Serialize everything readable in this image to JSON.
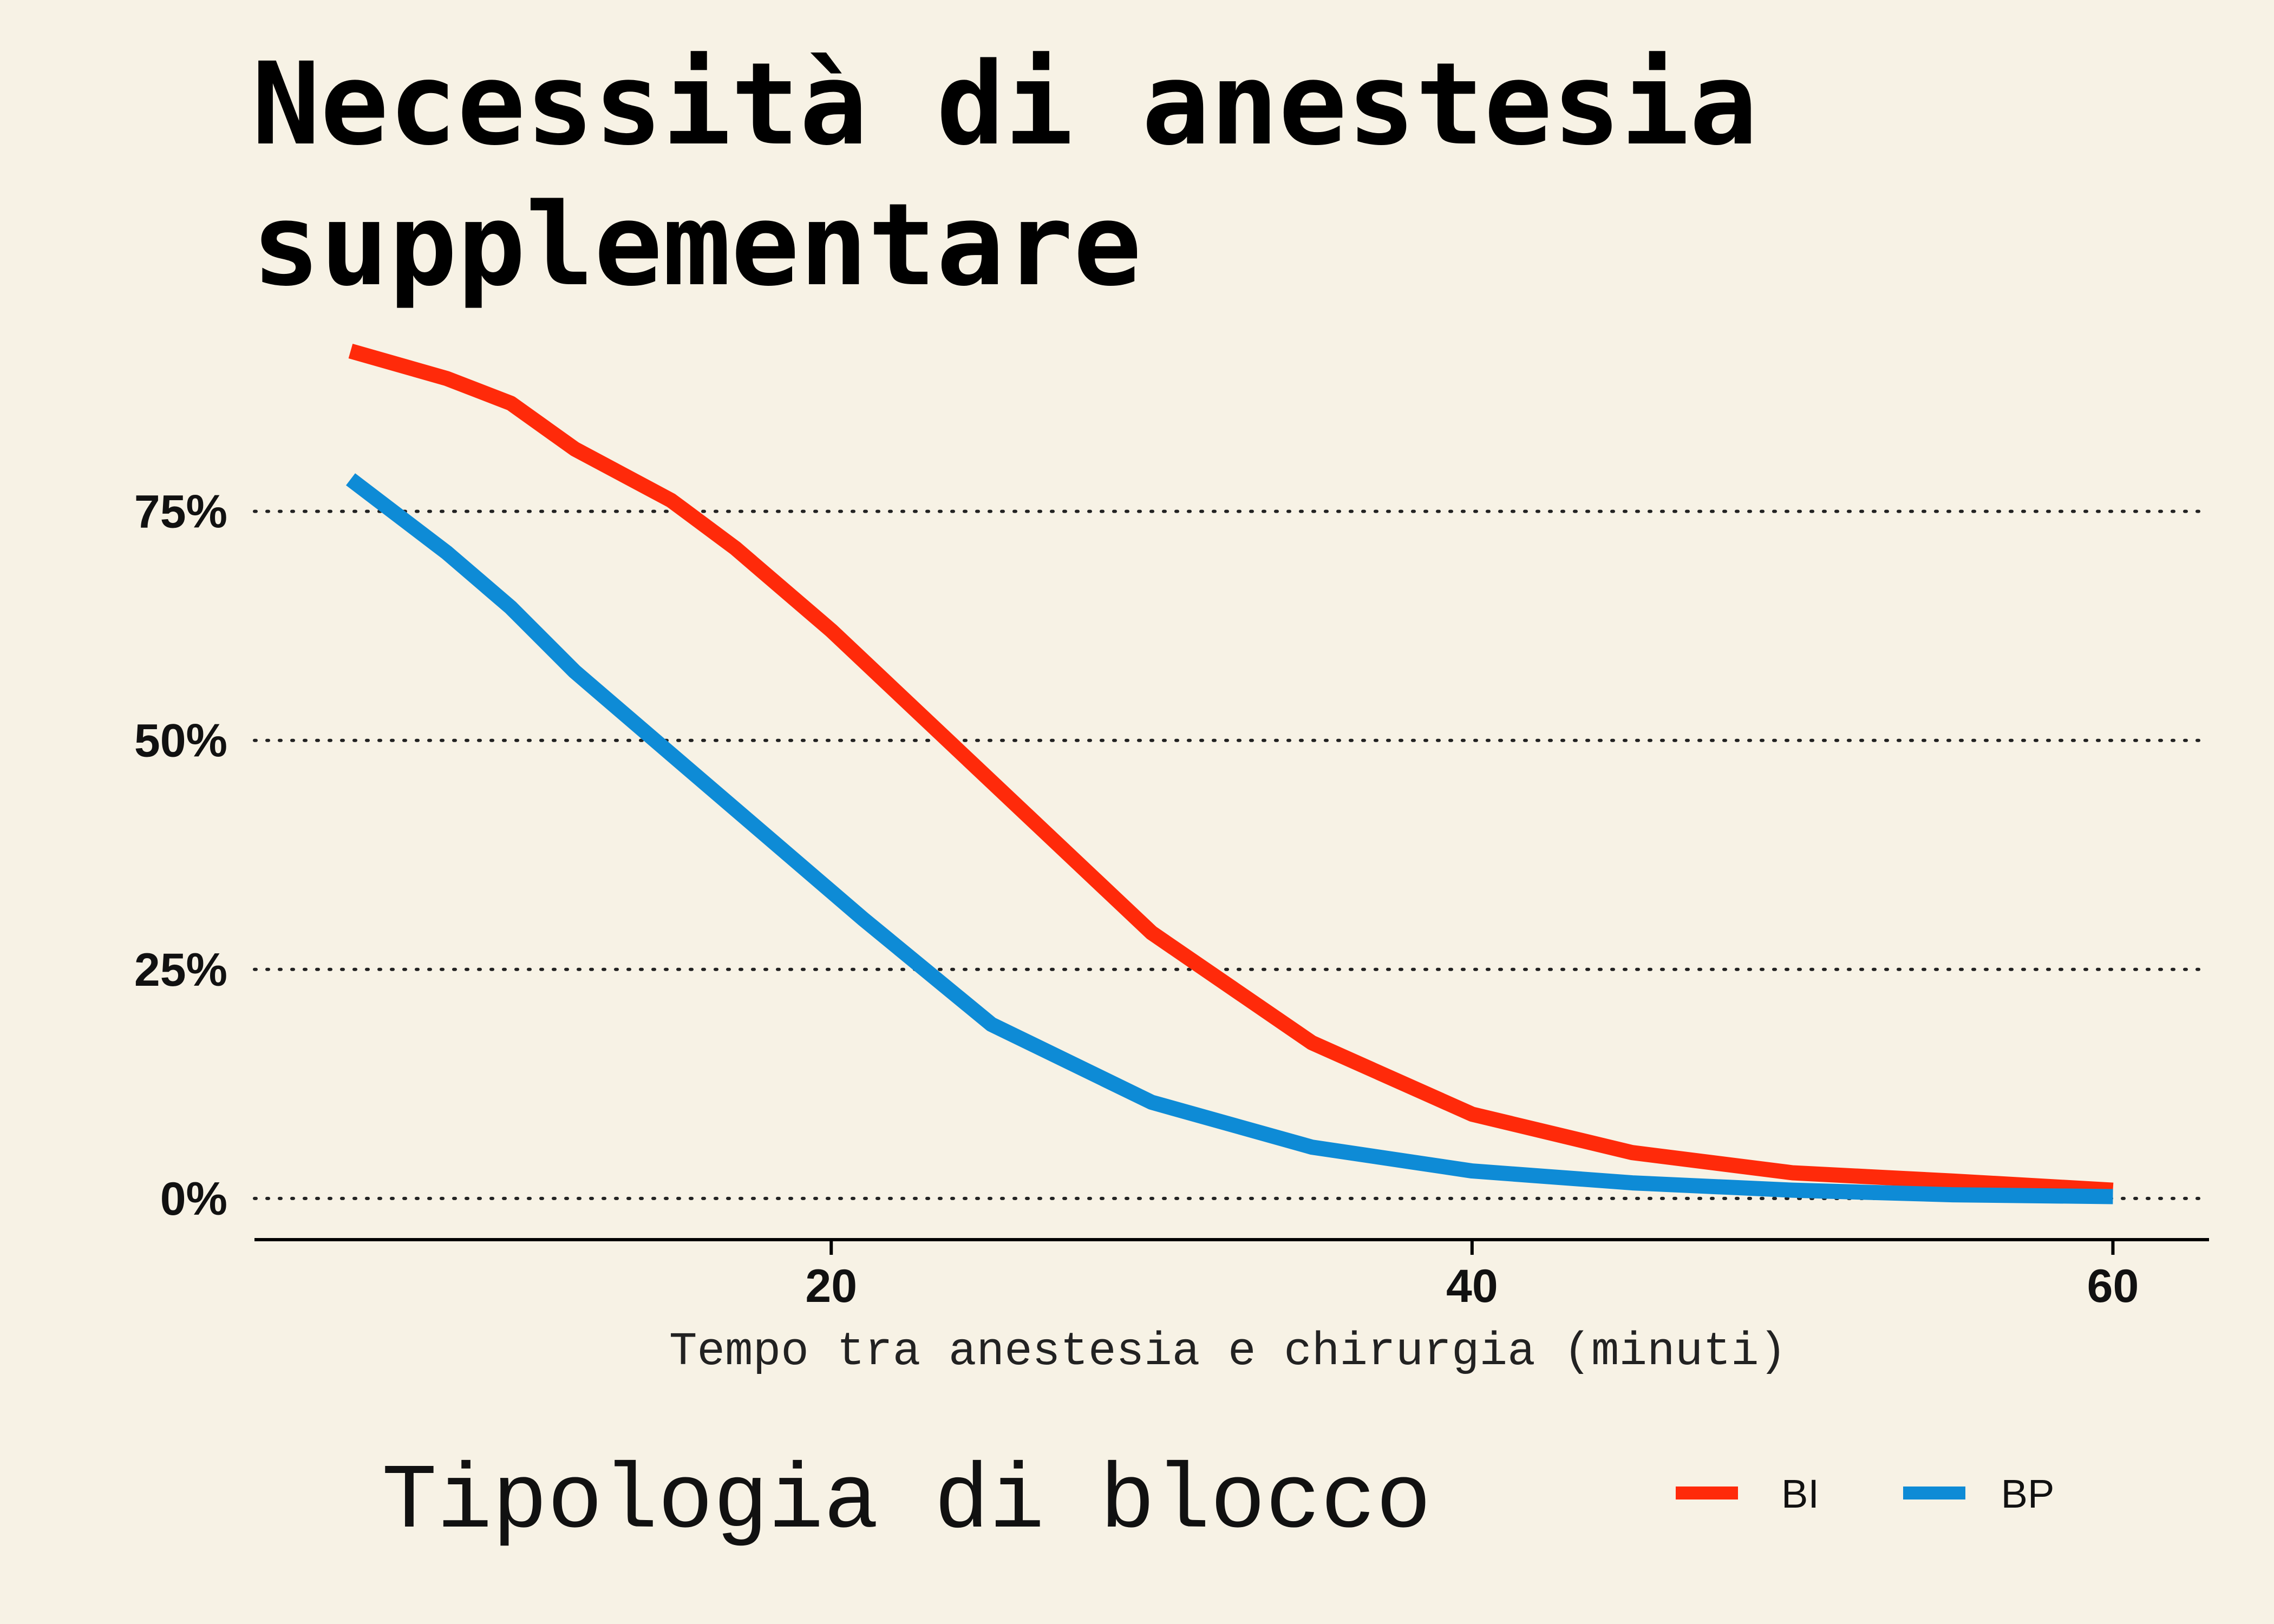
{
  "chart_data": {
    "type": "line",
    "title_line1": "Necessità di anestesia",
    "title_line2": "supplementare",
    "xlabel": "Tempo tra anestesia e chirurgia (minuti)",
    "ylabel": "",
    "xlim": [
      2,
      63
    ],
    "ylim": [
      -4.5,
      93
    ],
    "x_ticks": [
      {
        "value": 20,
        "label": "20"
      },
      {
        "value": 40,
        "label": "40"
      },
      {
        "value": 60,
        "label": "60"
      }
    ],
    "y_ticks": [
      {
        "value": 0,
        "label": "0%"
      },
      {
        "value": 25,
        "label": "25%"
      },
      {
        "value": 50,
        "label": "50%"
      },
      {
        "value": 75,
        "label": "75%"
      }
    ],
    "grid": "horizontal dotted",
    "legend": {
      "title": "Tipologia di blocco",
      "position": "bottom",
      "entries": [
        "BI",
        "BP"
      ]
    },
    "series": [
      {
        "name": "BI",
        "color": "#ff2a0a",
        "x": [
          5,
          8,
          10,
          12,
          15,
          17,
          18,
          20,
          25,
          30,
          35,
          40,
          45,
          50,
          55,
          60
        ],
        "y": [
          92.5,
          89.5,
          86.8,
          81.8,
          76.2,
          71,
          68,
          62,
          45.5,
          29,
          17,
          9.2,
          5,
          2.8,
          1.9,
          0.9
        ]
      },
      {
        "name": "BP",
        "color": "#0e8bd6",
        "x": [
          5,
          8,
          10,
          12,
          15,
          17,
          18,
          20,
          21,
          25,
          30,
          35,
          40,
          45,
          50,
          55,
          60
        ],
        "y": [
          78.5,
          70.5,
          64.5,
          57.5,
          48.5,
          42.5,
          39.5,
          33.5,
          30.5,
          19,
          10.5,
          5.6,
          3,
          1.7,
          0.9,
          0.4,
          0.2
        ]
      }
    ]
  }
}
